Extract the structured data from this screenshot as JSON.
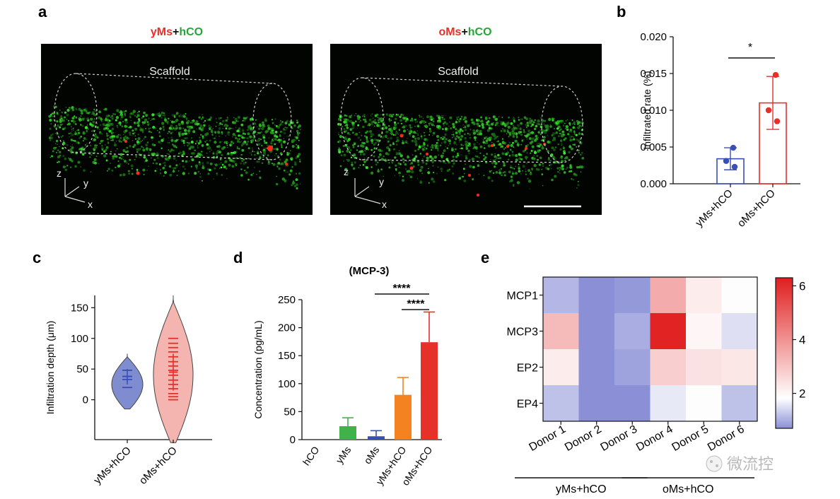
{
  "panels": {
    "a": {
      "label": "a",
      "left": {
        "title_parts": [
          {
            "text": "yMs",
            "color": "#e8302a"
          },
          {
            "text": "+",
            "color": "#111111"
          },
          {
            "text": "hCO",
            "color": "#2aa43a"
          }
        ],
        "scaffold_label": "Scaffold",
        "axes": {
          "z": "z",
          "y": "y",
          "x": "x"
        }
      },
      "right": {
        "title_parts": [
          {
            "text": "oMs",
            "color": "#e8302a"
          },
          {
            "text": "+",
            "color": "#111111"
          },
          {
            "text": "hCO",
            "color": "#2aa43a"
          }
        ],
        "scaffold_label": "Scaffold",
        "axes": {
          "z": "z",
          "y": "y",
          "x": "x"
        }
      }
    },
    "watermark": "微流控"
  },
  "chart_data": [
    {
      "panel": "b",
      "type": "bar",
      "categories": [
        "yMs+hCO",
        "oMs+hCO"
      ],
      "values": [
        0.0034,
        0.011
      ],
      "errors": [
        0.0015,
        0.0036
      ],
      "points": [
        [
          0.0049,
          0.0031,
          0.0023
        ],
        [
          0.0148,
          0.01,
          0.0085
        ]
      ],
      "colors": [
        "#3a4fb5",
        "#e8302a"
      ],
      "ylabel": "Infiltrated  rate (%)",
      "ylim": [
        0,
        0.02
      ],
      "yticks": [
        "0.000",
        "0.005",
        "0.010",
        "0.015",
        "0.020"
      ],
      "ytick_values": [
        0,
        0.005,
        0.01,
        0.015,
        0.02
      ],
      "significance": "*"
    },
    {
      "panel": "c",
      "type": "violin",
      "categories": [
        "yMs+hCO",
        "oMs+hCO"
      ],
      "ylabel": "Infiltration depth (μm)",
      "ylim": [
        -65,
        170
      ],
      "yticks": [
        "0",
        "50",
        "100",
        "150"
      ],
      "ytick_values": [
        0,
        50,
        100,
        150
      ],
      "colors": [
        "#7f8ccf",
        "#f4b4b0"
      ],
      "line_colors": [
        "#3a4fb5",
        "#e8302a"
      ],
      "violin_range": [
        [
          -15,
          75
        ],
        [
          -70,
          170
        ]
      ],
      "median": [
        38,
        45
      ],
      "quartiles": [
        [
          25,
          50
        ],
        [
          15,
          75
        ]
      ],
      "points": [
        [
          20,
          33,
          38,
          48
        ],
        [
          0,
          5,
          10,
          18,
          25,
          32,
          40,
          48,
          55,
          62,
          70,
          78,
          85,
          92,
          100
        ]
      ]
    },
    {
      "panel": "d",
      "type": "bar",
      "title": "(MCP-3)",
      "categories": [
        "hCO",
        "yMs",
        "oMs",
        "yMs+hCO",
        "oMs+hCO"
      ],
      "values": [
        0,
        24,
        6,
        80,
        174
      ],
      "errors": [
        0,
        15,
        10,
        31,
        54
      ],
      "colors": [
        "#888888",
        "#3fb34a",
        "#3a4fb5",
        "#f58220",
        "#e8302a"
      ],
      "ylabel": "Concentration (pg/mL)",
      "ylim": [
        0,
        250
      ],
      "yticks": [
        "0",
        "50",
        "100",
        "150",
        "200",
        "250"
      ],
      "ytick_values": [
        0,
        50,
        100,
        150,
        200,
        250
      ],
      "significance": [
        "****",
        "****"
      ]
    },
    {
      "panel": "e",
      "type": "heatmap",
      "rows": [
        "MCP1",
        "MCP3",
        "EP2",
        "EP4"
      ],
      "cols": [
        "Donor 1",
        "Donor 2",
        "Donor 3",
        "Donor 4",
        "Donor 5",
        "Donor 6"
      ],
      "values": [
        [
          1.1,
          0.7,
          0.8,
          3.5,
          2.2,
          1.8
        ],
        [
          3.2,
          0.7,
          1.0,
          6.2,
          2.0,
          1.5
        ],
        [
          2.2,
          0.7,
          0.9,
          2.8,
          2.4,
          2.3
        ],
        [
          1.2,
          0.7,
          0.6,
          1.6,
          1.8,
          1.2
        ]
      ],
      "groups": [
        {
          "label": "yMs+hCO",
          "from": 0,
          "to": 2
        },
        {
          "label": "oMs+hCO",
          "from": 3,
          "to": 5
        }
      ],
      "colorbar_ticks": [
        "2",
        "4",
        "6"
      ],
      "colorbar_tick_values": [
        2,
        4,
        6
      ],
      "vmin": 0.7,
      "vmax": 6.3
    }
  ]
}
